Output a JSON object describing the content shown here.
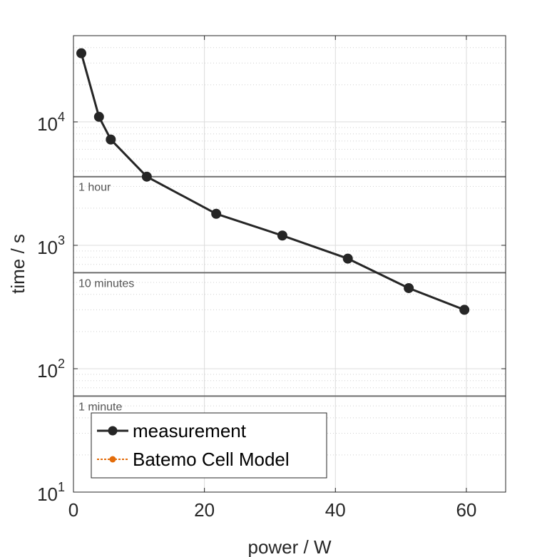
{
  "chart_data": {
    "type": "line",
    "xlabel": "power / W",
    "ylabel": "time / s",
    "xlim": [
      0,
      66
    ],
    "ylim": [
      10,
      50000
    ],
    "yscale": "log",
    "grid": true,
    "x_ticks": [
      0,
      20,
      40,
      60
    ],
    "y_ticks": [
      {
        "value": 10,
        "base": "10",
        "exp": "1"
      },
      {
        "value": 100,
        "base": "10",
        "exp": "2"
      },
      {
        "value": 1000,
        "base": "10",
        "exp": "3"
      },
      {
        "value": 10000,
        "base": "10",
        "exp": "4"
      }
    ],
    "series": [
      {
        "name": "measurement",
        "color": "#262626",
        "marker": "circle",
        "points": [
          {
            "x": 1.2,
            "y": 36000
          },
          {
            "x": 3.9,
            "y": 11000
          },
          {
            "x": 5.7,
            "y": 7200
          },
          {
            "x": 11.2,
            "y": 3600
          },
          {
            "x": 21.8,
            "y": 1800
          },
          {
            "x": 31.9,
            "y": 1200
          },
          {
            "x": 41.9,
            "y": 780
          },
          {
            "x": 51.2,
            "y": 450
          },
          {
            "x": 59.7,
            "y": 300
          }
        ]
      },
      {
        "name": "Batemo Cell Model",
        "color": "#e36c0a",
        "marker": "circle",
        "points": []
      }
    ],
    "reference_lines": [
      {
        "y": 3600,
        "label": "1 hour",
        "color": "#6e6e6e"
      },
      {
        "y": 600,
        "label": "10 minutes",
        "color": "#6e6e6e"
      },
      {
        "y": 60,
        "label": "1 minute",
        "color": "#6e6e6e"
      }
    ],
    "legend": {
      "position": "bottom-left",
      "entries": [
        "measurement",
        "Batemo Cell Model"
      ]
    }
  }
}
